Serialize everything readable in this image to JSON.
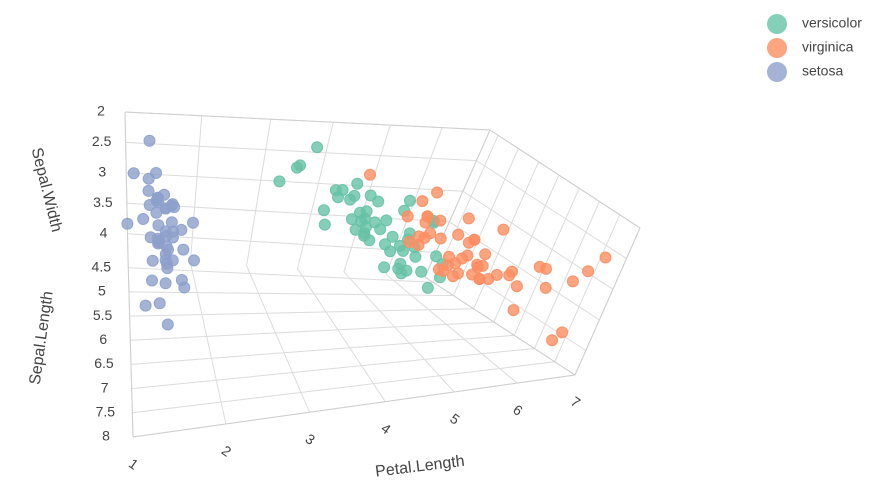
{
  "chart_data": {
    "type": "scatter3d",
    "xlabel": "Petal.Length",
    "ylabel": "Sepal.Width",
    "zlabel": "Sepal.Length",
    "xlim": [
      1,
      7
    ],
    "ylim": [
      2,
      4.4
    ],
    "zlim": [
      4.3,
      8
    ],
    "xticks": [
      1,
      2,
      3,
      4,
      5,
      6,
      7
    ],
    "yticks": [
      2,
      2.5,
      3,
      3.5,
      4
    ],
    "zticks": [
      4.5,
      5,
      5.5,
      6,
      6.5,
      7,
      7.5,
      8
    ],
    "grid": true,
    "legend": "top-right",
    "series": [
      {
        "name": "versicolor",
        "color": "#66c2a5",
        "x": [
          4.7,
          4.5,
          4.9,
          4.0,
          4.6,
          4.5,
          4.7,
          3.3,
          4.6,
          3.9,
          3.5,
          4.2,
          4.0,
          4.7,
          3.6,
          4.4,
          4.5,
          4.1,
          4.5,
          3.9,
          4.8,
          4.0,
          4.9,
          4.7,
          4.3,
          4.4,
          4.8,
          5.0,
          4.5,
          3.5,
          3.8,
          3.7,
          3.9,
          5.1,
          4.5,
          4.5,
          4.7,
          4.4,
          4.1,
          4.0,
          4.4,
          4.6,
          4.0,
          3.3,
          4.2,
          4.2,
          4.2,
          4.3,
          3.0,
          4.1
        ],
        "y": [
          3.2,
          3.2,
          3.1,
          2.3,
          2.8,
          2.8,
          3.3,
          2.4,
          2.9,
          2.7,
          2.0,
          3.0,
          2.2,
          2.9,
          2.9,
          3.1,
          3.0,
          2.7,
          2.2,
          2.5,
          3.2,
          2.8,
          2.5,
          2.8,
          2.9,
          3.0,
          2.8,
          3.0,
          2.9,
          2.6,
          2.4,
          2.4,
          2.7,
          2.7,
          3.0,
          3.4,
          3.1,
          2.3,
          3.0,
          2.5,
          2.6,
          3.0,
          2.6,
          2.3,
          2.7,
          3.0,
          2.9,
          2.9,
          2.5,
          2.8
        ],
        "z": [
          7.0,
          6.4,
          6.9,
          5.5,
          6.5,
          5.7,
          6.3,
          4.9,
          6.6,
          5.2,
          5.0,
          5.9,
          6.0,
          6.1,
          5.6,
          6.7,
          5.6,
          5.8,
          6.2,
          5.6,
          5.9,
          6.1,
          6.3,
          6.1,
          6.4,
          6.6,
          6.8,
          6.7,
          6.0,
          5.7,
          5.5,
          5.5,
          5.8,
          6.0,
          5.4,
          6.0,
          6.7,
          6.3,
          5.6,
          5.5,
          5.5,
          6.1,
          5.8,
          5.0,
          5.6,
          5.7,
          5.7,
          6.2,
          5.1,
          5.7
        ]
      },
      {
        "name": "virginica",
        "color": "#fc8d62",
        "x": [
          6.0,
          5.1,
          5.9,
          5.6,
          5.8,
          6.6,
          4.5,
          6.3,
          5.8,
          6.1,
          5.1,
          5.3,
          5.5,
          5.0,
          5.1,
          5.3,
          5.5,
          6.7,
          6.9,
          5.0,
          5.7,
          4.9,
          6.7,
          4.9,
          5.7,
          6.0,
          4.8,
          4.9,
          5.6,
          5.8,
          6.1,
          6.4,
          5.6,
          5.1,
          5.6,
          6.1,
          5.6,
          5.5,
          4.8,
          5.4,
          5.6,
          5.1,
          5.1,
          5.9,
          5.7,
          5.2,
          5.0,
          5.2,
          5.4,
          5.1
        ],
        "y": [
          3.3,
          2.7,
          3.0,
          2.9,
          3.0,
          3.0,
          2.5,
          2.9,
          2.5,
          3.6,
          3.2,
          2.7,
          3.0,
          2.5,
          2.8,
          3.2,
          3.0,
          3.8,
          2.6,
          2.2,
          3.2,
          2.8,
          2.8,
          2.7,
          3.3,
          3.2,
          2.8,
          3.0,
          2.8,
          3.0,
          2.8,
          3.8,
          2.8,
          2.8,
          2.6,
          3.0,
          3.4,
          3.1,
          3.0,
          3.1,
          3.1,
          3.1,
          2.7,
          3.2,
          3.3,
          3.0,
          2.5,
          3.0,
          3.4,
          3.0
        ],
        "z": [
          6.3,
          5.8,
          7.1,
          6.3,
          6.5,
          7.6,
          4.9,
          7.3,
          6.7,
          7.2,
          6.5,
          6.4,
          6.8,
          5.7,
          5.8,
          6.4,
          6.5,
          7.7,
          7.7,
          6.0,
          6.9,
          5.6,
          7.7,
          6.3,
          6.7,
          7.2,
          6.2,
          6.1,
          6.4,
          7.2,
          7.4,
          7.9,
          6.4,
          6.3,
          6.1,
          7.7,
          6.3,
          6.4,
          6.0,
          6.9,
          6.7,
          6.9,
          5.8,
          6.8,
          6.7,
          6.7,
          6.3,
          6.5,
          6.2,
          5.9
        ]
      },
      {
        "name": "setosa",
        "color": "#8da0cb",
        "x": [
          1.4,
          1.4,
          1.3,
          1.5,
          1.4,
          1.7,
          1.4,
          1.5,
          1.4,
          1.5,
          1.5,
          1.6,
          1.4,
          1.1,
          1.2,
          1.5,
          1.3,
          1.4,
          1.7,
          1.5,
          1.7,
          1.5,
          1.0,
          1.7,
          1.9,
          1.6,
          1.6,
          1.5,
          1.4,
          1.6,
          1.6,
          1.5,
          1.5,
          1.4,
          1.5,
          1.2,
          1.3,
          1.4,
          1.3,
          1.5,
          1.3,
          1.3,
          1.3,
          1.6,
          1.9,
          1.4,
          1.6,
          1.4,
          1.5,
          1.4
        ],
        "y": [
          3.5,
          3.0,
          3.2,
          3.1,
          3.6,
          3.9,
          3.4,
          3.4,
          2.9,
          3.1,
          3.7,
          3.4,
          3.0,
          3.0,
          4.0,
          4.4,
          3.9,
          3.5,
          3.8,
          3.8,
          3.4,
          3.7,
          3.6,
          3.3,
          3.4,
          3.0,
          3.4,
          3.5,
          3.4,
          3.2,
          3.1,
          3.4,
          4.1,
          4.2,
          3.1,
          3.2,
          3.5,
          3.6,
          3.0,
          3.4,
          3.5,
          2.3,
          3.2,
          3.5,
          3.8,
          3.0,
          3.8,
          3.2,
          3.7,
          3.3
        ],
        "z": [
          5.1,
          4.9,
          4.7,
          4.6,
          5.0,
          5.4,
          4.6,
          5.0,
          4.4,
          4.9,
          5.4,
          4.8,
          4.8,
          4.3,
          5.8,
          5.7,
          5.4,
          5.1,
          5.7,
          5.1,
          5.4,
          5.1,
          4.6,
          5.1,
          4.8,
          5.0,
          5.0,
          5.2,
          5.2,
          4.7,
          4.8,
          5.4,
          5.2,
          5.5,
          4.9,
          5.0,
          5.5,
          4.9,
          4.4,
          5.1,
          5.0,
          4.5,
          4.4,
          5.0,
          5.1,
          4.8,
          5.1,
          4.6,
          5.3,
          5.0
        ]
      }
    ]
  }
}
